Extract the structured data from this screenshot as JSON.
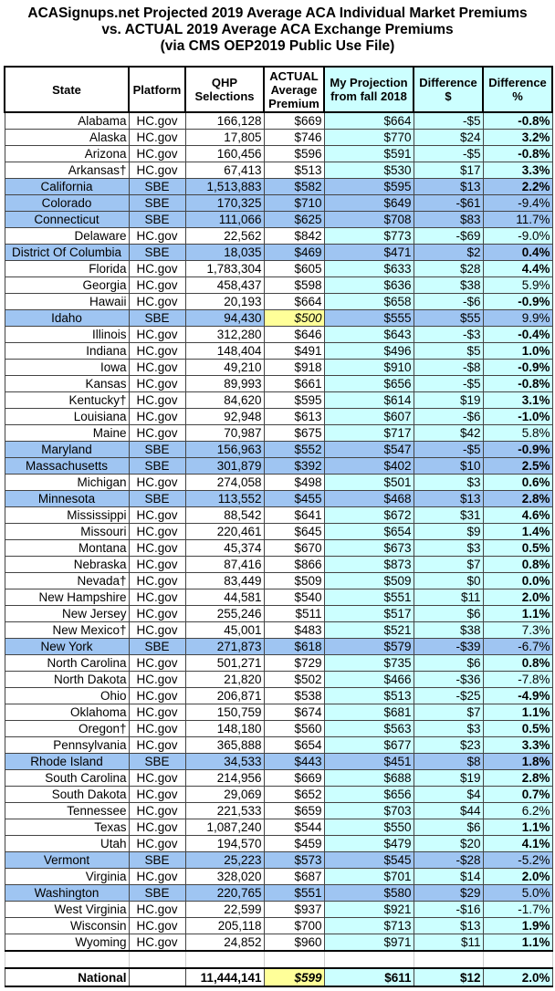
{
  "title": [
    "ACASignups.net Projected 2019 Average ACA Individual Market Premiums",
    "vs. ACTUAL 2019 Average ACA Exchange Premiums",
    "(via CMS OEP2019 Public Use File)"
  ],
  "headers": [
    "State",
    "Platform",
    "QHP Selections",
    "ACTUAL Average Premium",
    "My Projection from fall 2018",
    "Difference $",
    "Difference %"
  ],
  "colors": {
    "sbe_row": "#9fc5f2",
    "projection_cols": "#ccffff",
    "highlight": "#ffff99"
  },
  "rows": [
    [
      "Alabama",
      "HC.gov",
      "166,128",
      "$669",
      "$664",
      "-$5",
      "-0.8%",
      0,
      1
    ],
    [
      "Alaska",
      "HC.gov",
      "17,805",
      "$746",
      "$770",
      "$24",
      "3.2%",
      0,
      1
    ],
    [
      "Arizona",
      "HC.gov",
      "160,456",
      "$596",
      "$591",
      "-$5",
      "-0.8%",
      0,
      1
    ],
    [
      "Arkansas†",
      "HC.gov",
      "67,413",
      "$513",
      "$530",
      "$17",
      "3.3%",
      0,
      1
    ],
    [
      "California",
      "SBE",
      "1,513,883",
      "$582",
      "$595",
      "$13",
      "2.2%",
      1,
      1
    ],
    [
      "Colorado",
      "SBE",
      "170,325",
      "$710",
      "$649",
      "-$61",
      "-9.4%",
      1,
      0
    ],
    [
      "Connecticut",
      "SBE",
      "111,066",
      "$625",
      "$708",
      "$83",
      "11.7%",
      1,
      0
    ],
    [
      "Delaware",
      "HC.gov",
      "22,562",
      "$842",
      "$773",
      "-$69",
      "-9.0%",
      0,
      0
    ],
    [
      "District Of Columbia",
      "SBE",
      "18,035",
      "$469",
      "$471",
      "$2",
      "0.4%",
      1,
      1
    ],
    [
      "Florida",
      "HC.gov",
      "1,783,304",
      "$605",
      "$633",
      "$28",
      "4.4%",
      0,
      1
    ],
    [
      "Georgia",
      "HC.gov",
      "458,437",
      "$598",
      "$636",
      "$38",
      "5.9%",
      0,
      0
    ],
    [
      "Hawaii",
      "HC.gov",
      "20,193",
      "$664",
      "$658",
      "-$6",
      "-0.9%",
      0,
      1
    ],
    [
      "Idaho",
      "SBE",
      "94,430",
      "$500",
      "$555",
      "$55",
      "9.9%",
      1,
      0
    ],
    [
      "Illinois",
      "HC.gov",
      "312,280",
      "$646",
      "$643",
      "-$3",
      "-0.4%",
      0,
      1
    ],
    [
      "Indiana",
      "HC.gov",
      "148,404",
      "$491",
      "$496",
      "$5",
      "1.0%",
      0,
      1
    ],
    [
      "Iowa",
      "HC.gov",
      "49,210",
      "$918",
      "$910",
      "-$8",
      "-0.9%",
      0,
      1
    ],
    [
      "Kansas",
      "HC.gov",
      "89,993",
      "$661",
      "$656",
      "-$5",
      "-0.8%",
      0,
      1
    ],
    [
      "Kentucky†",
      "HC.gov",
      "84,620",
      "$595",
      "$614",
      "$19",
      "3.1%",
      0,
      1
    ],
    [
      "Louisiana",
      "HC.gov",
      "92,948",
      "$613",
      "$607",
      "-$6",
      "-1.0%",
      0,
      1
    ],
    [
      "Maine",
      "HC.gov",
      "70,987",
      "$675",
      "$717",
      "$42",
      "5.8%",
      0,
      0
    ],
    [
      "Maryland",
      "SBE",
      "156,963",
      "$552",
      "$547",
      "-$5",
      "-0.9%",
      1,
      1
    ],
    [
      "Massachusetts",
      "SBE",
      "301,879",
      "$392",
      "$402",
      "$10",
      "2.5%",
      1,
      1
    ],
    [
      "Michigan",
      "HC.gov",
      "274,058",
      "$498",
      "$501",
      "$3",
      "0.6%",
      0,
      1
    ],
    [
      "Minnesota",
      "SBE",
      "113,552",
      "$455",
      "$468",
      "$13",
      "2.8%",
      1,
      1
    ],
    [
      "Mississippi",
      "HC.gov",
      "88,542",
      "$641",
      "$672",
      "$31",
      "4.6%",
      0,
      1
    ],
    [
      "Missouri",
      "HC.gov",
      "220,461",
      "$645",
      "$654",
      "$9",
      "1.4%",
      0,
      1
    ],
    [
      "Montana",
      "HC.gov",
      "45,374",
      "$670",
      "$673",
      "$3",
      "0.5%",
      0,
      1
    ],
    [
      "Nebraska",
      "HC.gov",
      "87,416",
      "$866",
      "$873",
      "$7",
      "0.8%",
      0,
      1
    ],
    [
      "Nevada†",
      "HC.gov",
      "83,449",
      "$509",
      "$509",
      "$0",
      "0.0%",
      0,
      1
    ],
    [
      "New Hampshire",
      "HC.gov",
      "44,581",
      "$540",
      "$551",
      "$11",
      "2.0%",
      0,
      1
    ],
    [
      "New Jersey",
      "HC.gov",
      "255,246",
      "$511",
      "$517",
      "$6",
      "1.1%",
      0,
      1
    ],
    [
      "New Mexico†",
      "HC.gov",
      "45,001",
      "$483",
      "$521",
      "$38",
      "7.3%",
      0,
      0
    ],
    [
      "New York",
      "SBE",
      "271,873",
      "$618",
      "$579",
      "-$39",
      "-6.7%",
      1,
      0
    ],
    [
      "North Carolina",
      "HC.gov",
      "501,271",
      "$729",
      "$735",
      "$6",
      "0.8%",
      0,
      1
    ],
    [
      "North Dakota",
      "HC.gov",
      "21,820",
      "$502",
      "$466",
      "-$36",
      "-7.8%",
      0,
      0
    ],
    [
      "Ohio",
      "HC.gov",
      "206,871",
      "$538",
      "$513",
      "-$25",
      "-4.9%",
      0,
      1
    ],
    [
      "Oklahoma",
      "HC.gov",
      "150,759",
      "$674",
      "$681",
      "$7",
      "1.1%",
      0,
      1
    ],
    [
      "Oregon†",
      "HC.gov",
      "148,180",
      "$560",
      "$563",
      "$3",
      "0.5%",
      0,
      1
    ],
    [
      "Pennsylvania",
      "HC.gov",
      "365,888",
      "$654",
      "$677",
      "$23",
      "3.3%",
      0,
      1
    ],
    [
      "Rhode Island",
      "SBE",
      "34,533",
      "$443",
      "$451",
      "$8",
      "1.8%",
      1,
      1
    ],
    [
      "South Carolina",
      "HC.gov",
      "214,956",
      "$669",
      "$688",
      "$19",
      "2.8%",
      0,
      1
    ],
    [
      "South Dakota",
      "HC.gov",
      "29,069",
      "$652",
      "$656",
      "$4",
      "0.7%",
      0,
      1
    ],
    [
      "Tennessee",
      "HC.gov",
      "221,533",
      "$659",
      "$703",
      "$44",
      "6.2%",
      0,
      0
    ],
    [
      "Texas",
      "HC.gov",
      "1,087,240",
      "$544",
      "$550",
      "$6",
      "1.1%",
      0,
      1
    ],
    [
      "Utah",
      "HC.gov",
      "194,570",
      "$459",
      "$479",
      "$20",
      "4.1%",
      0,
      1
    ],
    [
      "Vermont",
      "SBE",
      "25,223",
      "$573",
      "$545",
      "-$28",
      "-5.2%",
      1,
      0
    ],
    [
      "Virginia",
      "HC.gov",
      "328,020",
      "$687",
      "$701",
      "$14",
      "2.0%",
      0,
      1
    ],
    [
      "Washington",
      "SBE",
      "220,765",
      "$551",
      "$580",
      "$29",
      "5.0%",
      1,
      0
    ],
    [
      "West Virginia",
      "HC.gov",
      "22,599",
      "$937",
      "$921",
      "-$16",
      "-1.7%",
      0,
      0
    ],
    [
      "Wisconsin",
      "HC.gov",
      "205,118",
      "$700",
      "$713",
      "$13",
      "1.9%",
      0,
      1
    ],
    [
      "Wyoming",
      "HC.gov",
      "24,852",
      "$960",
      "$971",
      "$11",
      "1.1%",
      0,
      1
    ]
  ],
  "highlighted_cells": [
    "Idaho"
  ],
  "national": {
    "label": "National",
    "platform": "",
    "qhp": "11,444,141",
    "actual": "$599",
    "projection": "$611",
    "diff": "$12",
    "pct": "2.0%"
  }
}
